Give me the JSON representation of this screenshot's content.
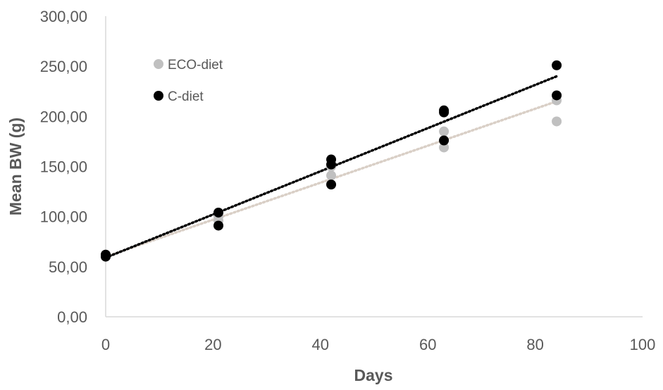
{
  "chart_data": {
    "type": "scatter",
    "title": "",
    "xlabel": "Days",
    "ylabel": "Mean BW (g)",
    "xlim": [
      0,
      100
    ],
    "ylim": [
      0,
      300
    ],
    "x_ticks": [
      0,
      20,
      40,
      60,
      80,
      100
    ],
    "x_tick_labels": [
      "0",
      "20",
      "40",
      "60",
      "80",
      "100"
    ],
    "y_ticks": [
      0,
      50,
      100,
      150,
      200,
      250,
      300
    ],
    "y_tick_labels": [
      "0,00",
      "50,00",
      "100,00",
      "150,00",
      "200,00",
      "250,00",
      "300,00"
    ],
    "grid": false,
    "legend_position": "top-left",
    "series": [
      {
        "name": "ECO-diet",
        "color": "#c0c0c0",
        "trendline_color": "#d9cfc6",
        "points": [
          {
            "x": 0,
            "y": 62
          },
          {
            "x": 0,
            "y": 60
          },
          {
            "x": 21,
            "y": 100
          },
          {
            "x": 21,
            "y": 96
          },
          {
            "x": 42,
            "y": 150
          },
          {
            "x": 42,
            "y": 141
          },
          {
            "x": 63,
            "y": 185
          },
          {
            "x": 63,
            "y": 169
          },
          {
            "x": 84,
            "y": 216
          },
          {
            "x": 84,
            "y": 195
          }
        ],
        "trendline": {
          "from": [
            0,
            60
          ],
          "to": [
            84,
            215
          ]
        }
      },
      {
        "name": "C-diet",
        "color": "#000000",
        "trendline_color": "#000000",
        "points": [
          {
            "x": 0,
            "y": 62
          },
          {
            "x": 0,
            "y": 60
          },
          {
            "x": 21,
            "y": 104
          },
          {
            "x": 21,
            "y": 91
          },
          {
            "x": 42,
            "y": 157
          },
          {
            "x": 42,
            "y": 152
          },
          {
            "x": 42,
            "y": 132
          },
          {
            "x": 63,
            "y": 206
          },
          {
            "x": 63,
            "y": 204
          },
          {
            "x": 63,
            "y": 176
          },
          {
            "x": 84,
            "y": 251
          },
          {
            "x": 84,
            "y": 221
          }
        ],
        "trendline": {
          "from": [
            0,
            59
          ],
          "to": [
            84,
            240
          ]
        }
      }
    ]
  }
}
